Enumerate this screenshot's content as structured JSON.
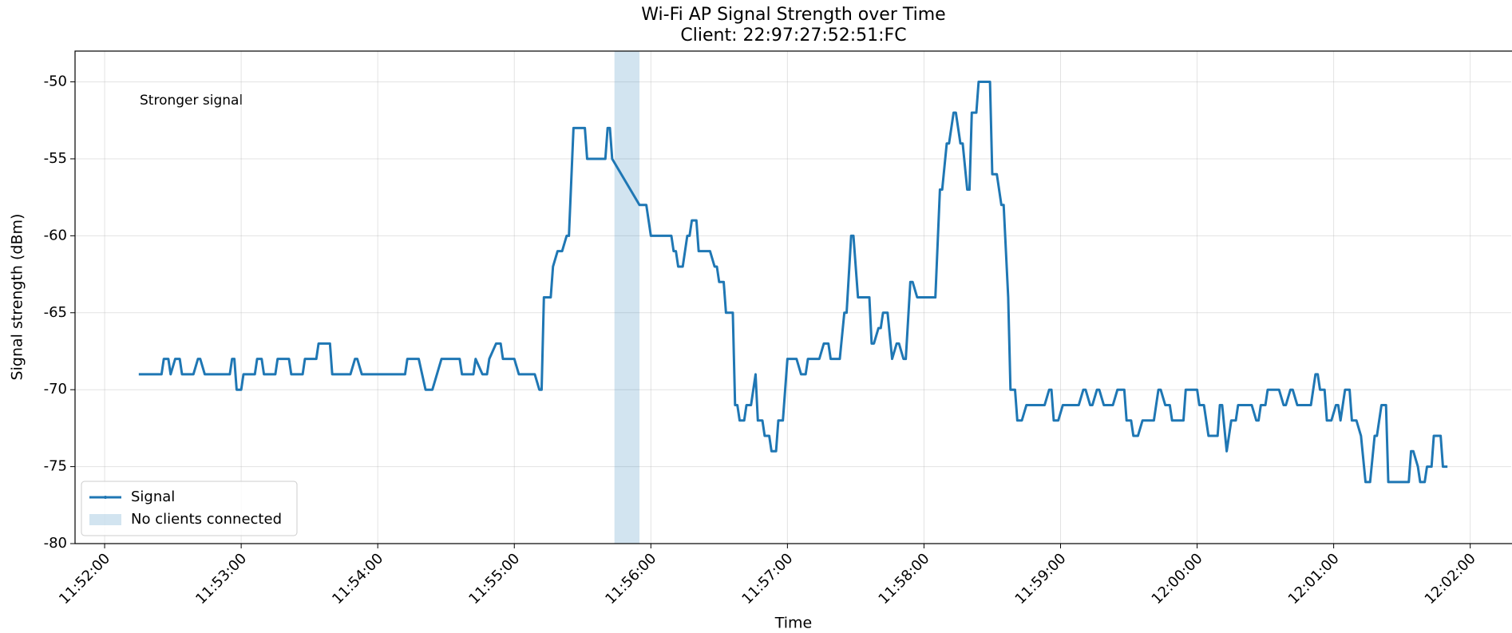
{
  "chart_data": {
    "type": "line",
    "title": "Wi-Fi AP Signal Strength over Time",
    "subtitle": "Client: 22:97:27:52:51:FC",
    "x_label": "Time",
    "y_label": "Signal strength (dBm)",
    "annotation": "Stronger signal",
    "grid": true,
    "legend": "lower left",
    "xlim": [
      "11:51:47",
      "12:02:18"
    ],
    "xticks": [
      "11:52:00",
      "11:53:00",
      "11:54:00",
      "11:55:00",
      "11:56:00",
      "11:57:00",
      "11:58:00",
      "11:59:00",
      "12:00:00",
      "12:01:00",
      "12:02:00"
    ],
    "ylim": [
      -80,
      -48
    ],
    "yticks": [
      -80,
      -75,
      -70,
      -65,
      -60,
      -55,
      -50
    ],
    "spans": [
      {
        "label": "No clients connected",
        "start": "11:55:44",
        "end": "11:55:55",
        "color": "#1f77b4"
      }
    ],
    "x": [
      "11:52:15",
      "11:52:25",
      "11:52:26",
      "11:52:28",
      "11:52:29",
      "11:52:31",
      "11:52:33",
      "11:52:34",
      "11:52:39",
      "11:52:41",
      "11:52:42",
      "11:52:44",
      "11:52:55",
      "11:52:56",
      "11:52:57",
      "11:52:58",
      "11:53:00",
      "11:53:01",
      "11:53:06",
      "11:53:07",
      "11:53:09",
      "11:53:10",
      "11:53:15",
      "11:53:16",
      "11:53:21",
      "11:53:22",
      "11:53:27",
      "11:53:28",
      "11:53:33",
      "11:53:34",
      "11:53:39",
      "11:53:40",
      "11:53:48",
      "11:53:50",
      "11:53:51",
      "11:53:53",
      "11:54:12",
      "11:54:13",
      "11:54:18",
      "11:54:21",
      "11:54:24",
      "11:54:26",
      "11:54:28",
      "11:54:36",
      "11:54:37",
      "11:54:42",
      "11:54:43",
      "11:54:46",
      "11:54:48",
      "11:54:49",
      "11:54:52",
      "11:54:54",
      "11:54:55",
      "11:55:00",
      "11:55:02",
      "11:55:09",
      "11:55:11",
      "11:55:12",
      "11:55:13",
      "11:55:16",
      "11:55:17",
      "11:55:19",
      "11:55:21",
      "11:55:23",
      "11:55:24",
      "11:55:26",
      "11:55:31",
      "11:55:32",
      "11:55:40",
      "11:55:41",
      "11:55:42",
      "11:55:43",
      "11:55:55",
      "11:55:58",
      "11:56:00",
      "11:56:09",
      "11:56:10",
      "11:56:11",
      "11:56:12",
      "11:56:14",
      "11:56:16",
      "11:56:17",
      "11:56:18",
      "11:56:20",
      "11:56:21",
      "11:56:26",
      "11:56:28",
      "11:56:29",
      "11:56:30",
      "11:56:32",
      "11:56:33",
      "11:56:36",
      "11:56:37",
      "11:56:38",
      "11:56:39",
      "11:56:41",
      "11:56:42",
      "11:56:44",
      "11:56:46",
      "11:56:47",
      "11:56:49",
      "11:56:50",
      "11:56:52",
      "11:56:53",
      "11:56:55",
      "11:56:56",
      "11:56:58",
      "11:57:00",
      "11:57:04",
      "11:57:06",
      "11:57:08",
      "11:57:09",
      "11:57:14",
      "11:57:16",
      "11:57:18",
      "11:57:19",
      "11:57:23",
      "11:57:25",
      "11:57:26",
      "11:57:28",
      "11:57:29",
      "11:57:31",
      "11:57:36",
      "11:57:37",
      "11:57:38",
      "11:57:40",
      "11:57:41",
      "11:57:42",
      "11:57:44",
      "11:57:46",
      "11:57:48",
      "11:57:49",
      "11:57:51",
      "11:57:52",
      "11:57:54",
      "11:57:55",
      "11:57:57",
      "11:58:05",
      "11:58:07",
      "11:58:08",
      "11:58:10",
      "11:58:11",
      "11:58:13",
      "11:58:14",
      "11:58:16",
      "11:58:17",
      "11:58:19",
      "11:58:20",
      "11:58:21",
      "11:58:23",
      "11:58:24",
      "11:58:29",
      "11:58:30",
      "11:58:32",
      "11:58:34",
      "11:58:35",
      "11:58:37",
      "11:58:38",
      "11:58:40",
      "11:58:41",
      "11:58:43",
      "11:58:45",
      "11:58:53",
      "11:58:55",
      "11:58:56",
      "11:58:57",
      "11:58:59",
      "11:59:01",
      "11:59:08",
      "11:59:10",
      "11:59:11",
      "11:59:13",
      "11:59:14",
      "11:59:16",
      "11:59:17",
      "11:59:19",
      "11:59:23",
      "11:59:25",
      "11:59:28",
      "11:59:29",
      "11:59:31",
      "11:59:32",
      "11:59:34",
      "11:59:36",
      "11:59:41",
      "11:59:43",
      "11:59:44",
      "11:59:46",
      "11:59:48",
      "11:59:49",
      "11:59:54",
      "11:59:55",
      "12:00:00",
      "12:00:01",
      "12:00:03",
      "12:00:05",
      "12:00:09",
      "12:00:10",
      "12:00:11",
      "12:00:13",
      "12:00:15",
      "12:00:17",
      "12:00:18",
      "12:00:24",
      "12:00:26",
      "12:00:27",
      "12:00:28",
      "12:00:30",
      "12:00:31",
      "12:00:36",
      "12:00:38",
      "12:00:39",
      "12:00:41",
      "12:00:42",
      "12:00:44",
      "12:00:50",
      "12:00:52",
      "12:00:53",
      "12:00:54",
      "12:00:56",
      "12:00:57",
      "12:00:59",
      "12:01:01",
      "12:01:02",
      "12:01:03",
      "12:01:05",
      "12:01:07",
      "12:01:08",
      "12:01:10",
      "12:01:12",
      "12:01:14",
      "12:01:16",
      "12:01:18",
      "12:01:19",
      "12:01:21",
      "12:01:23",
      "12:01:24",
      "12:01:33",
      "12:01:34",
      "12:01:35",
      "12:01:37",
      "12:01:38",
      "12:01:40",
      "12:01:41",
      "12:01:43",
      "12:01:44",
      "12:01:47",
      "12:01:48",
      "12:01:50"
    ],
    "series": [
      {
        "name": "Signal",
        "color": "#1f77b4",
        "values": [
          -69,
          -69,
          -68,
          -68,
          -69,
          -68,
          -68,
          -69,
          -69,
          -68,
          -68,
          -69,
          -69,
          -68,
          -68,
          -70,
          -70,
          -69,
          -69,
          -68,
          -68,
          -69,
          -69,
          -68,
          -68,
          -69,
          -69,
          -68,
          -68,
          -67,
          -67,
          -69,
          -69,
          -68,
          -68,
          -69,
          -69,
          -68,
          -68,
          -70,
          -70,
          -69,
          -68,
          -68,
          -69,
          -69,
          -68,
          -69,
          -69,
          -68,
          -67,
          -67,
          -68,
          -68,
          -69,
          -69,
          -70,
          -70,
          -64,
          -64,
          -62,
          -61,
          -61,
          -60,
          -60,
          -53,
          -53,
          -55,
          -55,
          -53,
          -53,
          -55,
          -58,
          -58,
          -60,
          -60,
          -61,
          -61,
          -62,
          -62,
          -60,
          -60,
          -59,
          -59,
          -61,
          -61,
          -62,
          -62,
          -63,
          -63,
          -65,
          -65,
          -71,
          -71,
          -72,
          -72,
          -71,
          -71,
          -69,
          -72,
          -72,
          -73,
          -73,
          -74,
          -74,
          -72,
          -72,
          -68,
          -68,
          -69,
          -69,
          -68,
          -68,
          -67,
          -67,
          -68,
          -68,
          -65,
          -65,
          -60,
          -60,
          -64,
          -64,
          -67,
          -67,
          -66,
          -66,
          -65,
          -65,
          -68,
          -67,
          -67,
          -68,
          -68,
          -63,
          -63,
          -64,
          -64,
          -57,
          -57,
          -54,
          -54,
          -52,
          -52,
          -54,
          -54,
          -57,
          -57,
          -52,
          -52,
          -50,
          -50,
          -56,
          -56,
          -58,
          -58,
          -64,
          -70,
          -70,
          -72,
          -72,
          -71,
          -71,
          -70,
          -70,
          -72,
          -72,
          -71,
          -71,
          -70,
          -70,
          -71,
          -71,
          -70,
          -70,
          -71,
          -71,
          -70,
          -70,
          -72,
          -72,
          -73,
          -73,
          -72,
          -72,
          -70,
          -70,
          -71,
          -71,
          -72,
          -72,
          -70,
          -70,
          -71,
          -71,
          -73,
          -73,
          -71,
          -71,
          -74,
          -72,
          -72,
          -71,
          -71,
          -72,
          -72,
          -71,
          -71,
          -70,
          -70,
          -71,
          -71,
          -70,
          -70,
          -71,
          -71,
          -69,
          -69,
          -70,
          -70,
          -72,
          -72,
          -71,
          -71,
          -72,
          -70,
          -70,
          -72,
          -72,
          -73,
          -76,
          -76,
          -73,
          -73,
          -71,
          -71,
          -76,
          -76,
          -74,
          -74,
          -75,
          -76,
          -76,
          -75,
          -75,
          -73,
          -73,
          -75,
          -75
        ]
      }
    ]
  }
}
